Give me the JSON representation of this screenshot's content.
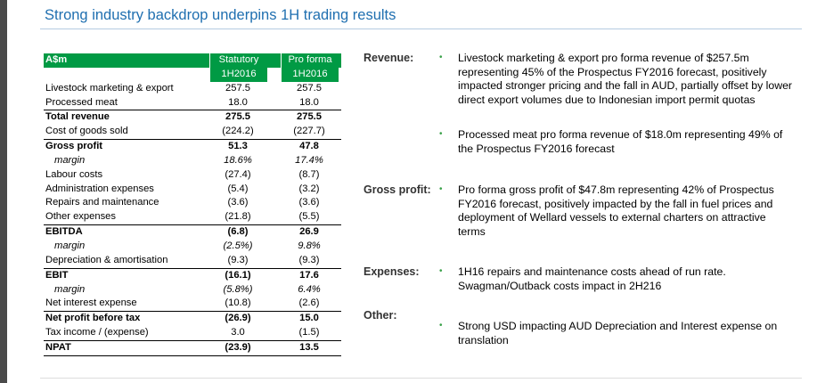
{
  "title": "Strong industry backdrop underpins 1H trading results",
  "table": {
    "header": {
      "label": "A$m",
      "col1": "Statutory",
      "col2": "Pro forma"
    },
    "subheader": {
      "col1": "1H2016",
      "col2": "1H2016"
    },
    "rows": [
      {
        "label": "Livestock marketing & export",
        "col1": "257.5",
        "col2": "257.5"
      },
      {
        "label": "Processed meat",
        "col1": "18.0",
        "col2": "18.0"
      },
      {
        "label": "Total revenue",
        "col1": "275.5",
        "col2": "275.5"
      },
      {
        "label": "Cost of goods sold",
        "col1": "(224.2)",
        "col2": "(227.7)"
      },
      {
        "label": "Gross profit",
        "col1": "51.3",
        "col2": "47.8"
      },
      {
        "label": "margin",
        "col1": "18.6%",
        "col2": "17.4%"
      },
      {
        "label": "Labour costs",
        "col1": "(27.4)",
        "col2": "(8.7)"
      },
      {
        "label": "Administration expenses",
        "col1": "(5.4)",
        "col2": "(3.2)"
      },
      {
        "label": "Repairs and maintenance",
        "col1": "(3.6)",
        "col2": "(3.6)"
      },
      {
        "label": "Other expenses",
        "col1": "(21.8)",
        "col2": "(5.5)"
      },
      {
        "label": "EBITDA",
        "col1": "(6.8)",
        "col2": "26.9"
      },
      {
        "label": "margin",
        "col1": "(2.5%)",
        "col2": "9.8%"
      },
      {
        "label": "Depreciation & amortisation",
        "col1": "(9.3)",
        "col2": "(9.3)"
      },
      {
        "label": "EBIT",
        "col1": "(16.1)",
        "col2": "17.6"
      },
      {
        "label": "margin",
        "col1": "(5.8%)",
        "col2": "6.4%"
      },
      {
        "label": "Net interest expense",
        "col1": "(10.8)",
        "col2": "(2.6)"
      },
      {
        "label": "Net profit before tax",
        "col1": "(26.9)",
        "col2": "15.0"
      },
      {
        "label": "Tax income / (expense)",
        "col1": "3.0",
        "col2": "(1.5)"
      },
      {
        "label": "NPAT",
        "col1": "(23.9)",
        "col2": "13.5"
      }
    ]
  },
  "commentary": {
    "revenue": {
      "heading": "Revenue:",
      "bullets": [
        "Livestock marketing & export pro forma revenue of $257.5m representing 45% of the Prospectus FY2016 forecast, positively impacted stronger pricing and the fall in AUD, partially offset by lower direct export volumes due to Indonesian import permit quotas",
        "Processed meat pro forma revenue of $18.0m representing 49% of the Prospectus FY2016 forecast"
      ]
    },
    "gross_profit": {
      "heading": "Gross profit:",
      "bullets": [
        "Pro forma gross profit of $47.8m representing 42% of Prospectus FY2016 forecast, positively impacted by the fall in fuel prices and deployment of Wellard vessels to external charters on attractive terms"
      ]
    },
    "expenses": {
      "heading": "Expenses:",
      "bullets": [
        "1H16 repairs and maintenance costs ahead of run rate. Swagman/Outback costs impact in 2H216"
      ]
    },
    "other": {
      "heading": "Other:",
      "bullets": [
        "Strong USD impacting AUD Depreciation and Interest expense on translation"
      ]
    }
  }
}
